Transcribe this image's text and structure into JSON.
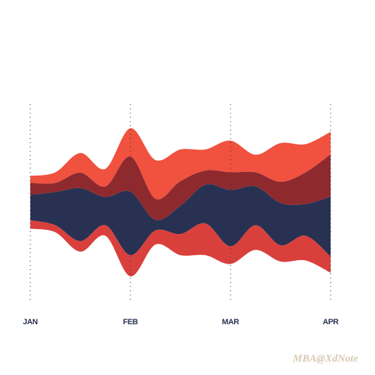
{
  "chart_data": {
    "type": "stream",
    "categories": [
      "JAN",
      null,
      null,
      null,
      "FEB",
      null,
      null,
      null,
      "MAR",
      null,
      null,
      null,
      "APR"
    ],
    "series": [
      {
        "color": "#f0523f",
        "values": [
          10,
          15,
          28,
          25,
          40,
          55,
          45,
          30,
          45,
          25,
          55,
          40,
          32
        ]
      },
      {
        "color": "#8e2a2e",
        "values": [
          17,
          13,
          22,
          15,
          50,
          30,
          35,
          20,
          25,
          20,
          30,
          45,
          60
        ]
      },
      {
        "color": "#283152",
        "values": [
          36,
          47,
          75,
          40,
          90,
          15,
          40,
          55,
          80,
          55,
          60,
          45,
          85
        ]
      },
      {
        "color": "#d9403c",
        "values": [
          12,
          10,
          15,
          15,
          30,
          20,
          30,
          45,
          25,
          35,
          23,
          35,
          23
        ]
      }
    ]
  },
  "watermark": "MBA@XdNote"
}
